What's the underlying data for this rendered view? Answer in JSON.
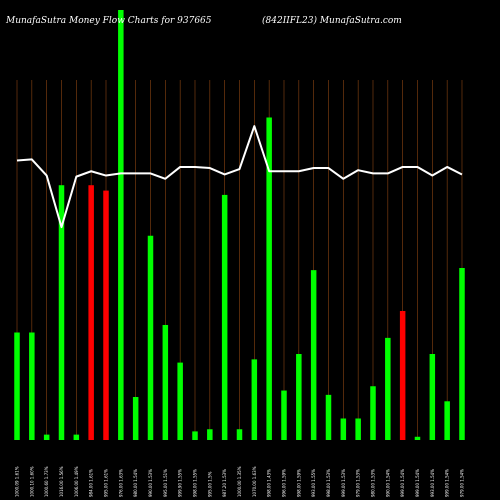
{
  "chart_data": {
    "type": "bar",
    "title_left": "MunafaSutra  Money Flow  Charts for 937665",
    "title_right": "(842IIFL23) MunafaSutra.com",
    "xlabel": "",
    "ylabel": "",
    "grid": "vertical",
    "legend": "none",
    "colors": {
      "up": "#00ff00",
      "down": "#ff0000",
      "line": "#ffffff",
      "grid": "#8b4513",
      "background": "#000000"
    },
    "categories": [
      "1000.09 1.61%",
      "1000.10 1.60%",
      "1000.60 1.73%",
      "1016.00 1.56%",
      "1006.00 1.49%",
      "984.00 1.61%",
      "995.00 1.61%",
      "976.00 1.63%",
      "980.00 1.54%",
      "990.00 1.53%",
      "995.00 1.51%",
      "999.90 1.55%",
      "998.00 1.55%",
      "995.00 1.5%",
      "987.20 1.53%",
      "1000.00 1.35%",
      "1070.00 1.63%",
      "998.00 1.43%",
      "996.00 1.59%",
      "998.00 1.59%",
      "993.00 1.55%",
      "998.00 1.53%",
      "999.00 1.53%",
      "979.00 1.53%",
      "980.00 1.53%",
      "990.00 1.54%",
      "999.00 1.54%",
      "999.00 1.54%",
      "993.00 1.54%",
      "999.00 1.54%",
      "979.00 1.54%"
    ],
    "series": [
      {
        "type": "bar",
        "values": [
          100,
          100,
          5,
          237,
          5,
          237,
          232,
          400,
          40,
          190,
          107,
          72,
          8,
          10,
          228,
          10,
          75,
          300,
          46,
          80,
          158,
          42,
          20,
          20,
          50,
          95,
          120,
          3,
          80,
          36,
          160
        ],
        "colors": [
          "up",
          "up",
          "up",
          "up",
          "up",
          "down",
          "down",
          "up",
          "up",
          "up",
          "up",
          "up",
          "up",
          "up",
          "up",
          "up",
          "up",
          "up",
          "up",
          "up",
          "up",
          "up",
          "up",
          "up",
          "up",
          "up",
          "down",
          "up",
          "up",
          "up",
          "up"
        ]
      },
      {
        "type": "line",
        "values": [
          260,
          261,
          246,
          198,
          245,
          250,
          246,
          248,
          248,
          248,
          243,
          254,
          254,
          253,
          247,
          252,
          292,
          250,
          250,
          250,
          253,
          253,
          243,
          251,
          248,
          248,
          254,
          254,
          246,
          254,
          247
        ]
      }
    ],
    "ylim": [
      0,
      400
    ]
  }
}
